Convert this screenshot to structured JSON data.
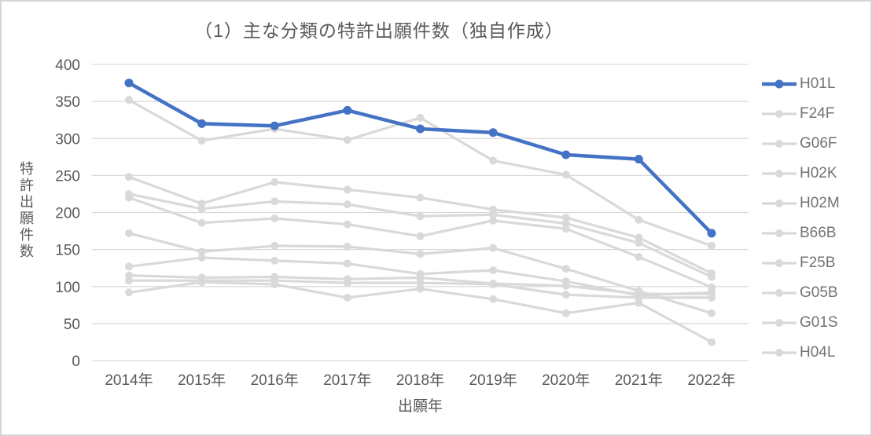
{
  "chart": {
    "title": "（1）主な分類の特許出願件数（独自作成）"
  },
  "chart_data": {
    "type": "line",
    "title": "（1）主な分類の特許出願件数（独自作成）",
    "xlabel": "出願年",
    "ylabel": "特許出願件数",
    "categories": [
      "2014年",
      "2015年",
      "2016年",
      "2017年",
      "2018年",
      "2019年",
      "2020年",
      "2021年",
      "2022年"
    ],
    "ylim": [
      0,
      400
    ],
    "ytick_step": 50,
    "grid": true,
    "legend_position": "right",
    "series": [
      {
        "name": "H01L",
        "color": "#4472C4",
        "emphasis": true,
        "values": [
          375,
          320,
          317,
          338,
          313,
          308,
          278,
          272,
          172
        ]
      },
      {
        "name": "F24F",
        "color": "#D9D9D9",
        "emphasis": false,
        "values": [
          352,
          297,
          313,
          298,
          328,
          270,
          251,
          190,
          155
        ]
      },
      {
        "name": "G06F",
        "color": "#D9D9D9",
        "emphasis": false,
        "values": [
          248,
          212,
          241,
          231,
          220,
          204,
          193,
          166,
          118
        ]
      },
      {
        "name": "H02K",
        "color": "#D9D9D9",
        "emphasis": false,
        "values": [
          225,
          205,
          215,
          211,
          195,
          197,
          185,
          159,
          113
        ]
      },
      {
        "name": "H02M",
        "color": "#D9D9D9",
        "emphasis": false,
        "values": [
          220,
          186,
          192,
          184,
          168,
          189,
          178,
          140,
          99
        ]
      },
      {
        "name": "B66B",
        "color": "#D9D9D9",
        "emphasis": false,
        "values": [
          172,
          147,
          155,
          154,
          144,
          152,
          124,
          94,
          64
        ]
      },
      {
        "name": "F25B",
        "color": "#D9D9D9",
        "emphasis": false,
        "values": [
          127,
          139,
          135,
          131,
          117,
          122,
          107,
          88,
          92
        ]
      },
      {
        "name": "G05B",
        "color": "#D9D9D9",
        "emphasis": false,
        "values": [
          115,
          112,
          113,
          110,
          112,
          104,
          101,
          90,
          90
        ]
      },
      {
        "name": "G01S",
        "color": "#D9D9D9",
        "emphasis": false,
        "values": [
          108,
          108,
          108,
          105,
          105,
          103,
          89,
          85,
          85
        ]
      },
      {
        "name": "H04L",
        "color": "#D9D9D9",
        "emphasis": false,
        "values": [
          92,
          106,
          103,
          85,
          97,
          83,
          64,
          78,
          25
        ]
      }
    ]
  },
  "colors": {
    "accent": "#4472C4",
    "muted_series": "#D9D9D9",
    "text": "#595959",
    "legend_text": "#737373",
    "grid": "#D9D9D9",
    "border": "#D6D6D6"
  }
}
